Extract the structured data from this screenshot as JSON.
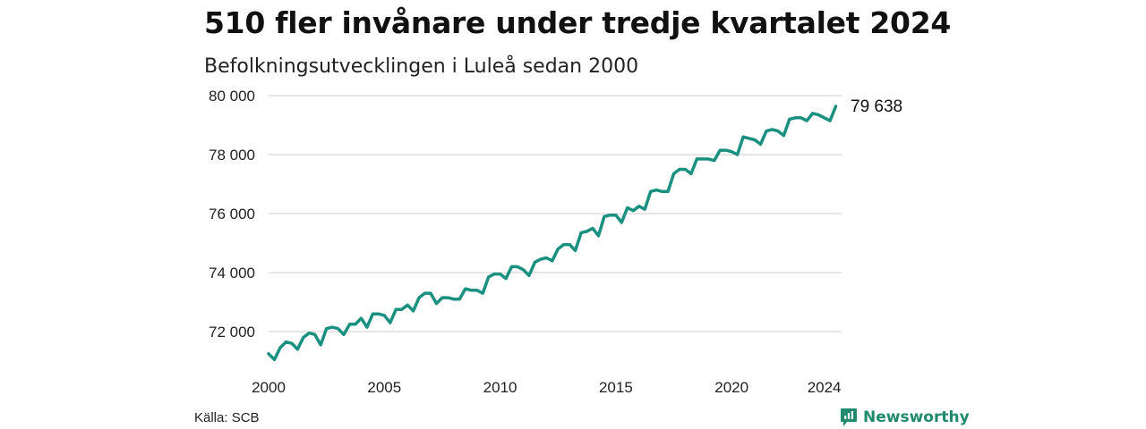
{
  "header": {
    "title": "510 fler invånare under tredje kvartalet 2024",
    "subtitle": "Befolkningsutvecklingen i Luleå sedan 2000"
  },
  "footer": {
    "source": "Källa: SCB",
    "brand": "Newsworthy",
    "brand_icon": "newsworthy-logo-icon"
  },
  "colors": {
    "line": "#1a9080",
    "grid": "#dddddd",
    "brand": "#1f8a6d"
  },
  "chart_data": {
    "type": "line",
    "title": "510 fler invånare under tredje kvartalet 2024",
    "subtitle": "Befolkningsutvecklingen i Luleå sedan 2000",
    "xlabel": "",
    "ylabel": "",
    "grid": "horizontal",
    "ylim": [
      70700,
      80000
    ],
    "xlim": [
      2000,
      2024.75
    ],
    "y_ticks": [
      72000,
      74000,
      76000,
      78000,
      80000
    ],
    "y_tick_labels": [
      "72 000",
      "74 000",
      "76 000",
      "78 000",
      "80 000"
    ],
    "x_ticks": [
      2000,
      2005,
      2010,
      2015,
      2020,
      2024
    ],
    "x_tick_labels": [
      "2000",
      "2005",
      "2010",
      "2015",
      "2020",
      "2024"
    ],
    "end_label": "79 638",
    "series": [
      {
        "x": [
          2000.0,
          2000.25,
          2000.5,
          2000.75,
          2001.0,
          2001.25,
          2001.5,
          2001.75,
          2002.0,
          2002.25,
          2002.5,
          2002.75,
          2003.0,
          2003.25,
          2003.5,
          2003.75,
          2004.0,
          2004.25,
          2004.5,
          2004.75,
          2005.0,
          2005.25,
          2005.5,
          2005.75,
          2006.0,
          2006.25,
          2006.5,
          2006.75,
          2007.0,
          2007.25,
          2007.5,
          2007.75,
          2008.0,
          2008.25,
          2008.5,
          2008.75,
          2009.0,
          2009.25,
          2009.5,
          2009.75,
          2010.0,
          2010.25,
          2010.5,
          2010.75,
          2011.0,
          2011.25,
          2011.5,
          2011.75,
          2012.0,
          2012.25,
          2012.5,
          2012.75,
          2013.0,
          2013.25,
          2013.5,
          2013.75,
          2014.0,
          2014.25,
          2014.5,
          2014.75,
          2015.0,
          2015.25,
          2015.5,
          2015.75,
          2016.0,
          2016.25,
          2016.5,
          2016.75,
          2017.0,
          2017.25,
          2017.5,
          2017.75,
          2018.0,
          2018.25,
          2018.5,
          2018.75,
          2019.0,
          2019.25,
          2019.5,
          2019.75,
          2020.0,
          2020.25,
          2020.5,
          2020.75,
          2021.0,
          2021.25,
          2021.5,
          2021.75,
          2022.0,
          2022.25,
          2022.5,
          2022.75,
          2023.0,
          2023.25,
          2023.5,
          2023.75,
          2024.0,
          2024.25,
          2024.5
        ],
        "values": [
          71250,
          71050,
          71450,
          71650,
          71600,
          71400,
          71800,
          71950,
          71900,
          71550,
          72100,
          72150,
          72100,
          71900,
          72250,
          72250,
          72450,
          72150,
          72600,
          72600,
          72550,
          72300,
          72750,
          72750,
          72900,
          72700,
          73150,
          73300,
          73300,
          72950,
          73150,
          73150,
          73100,
          73100,
          73450,
          73400,
          73400,
          73300,
          73850,
          73950,
          73950,
          73800,
          74200,
          74200,
          74100,
          73900,
          74350,
          74450,
          74500,
          74400,
          74800,
          74950,
          74950,
          74750,
          75350,
          75400,
          75500,
          75250,
          75900,
          75950,
          75950,
          75700,
          76200,
          76100,
          76250,
          76150,
          76750,
          76800,
          76750,
          76750,
          77350,
          77500,
          77500,
          77350,
          77850,
          77850,
          77850,
          77800,
          78150,
          78150,
          78100,
          78000,
          78600,
          78550,
          78500,
          78350,
          78800,
          78850,
          78800,
          78650,
          79200,
          79250,
          79250,
          79150,
          79400,
          79350,
          79250,
          79150,
          79638
        ]
      }
    ]
  }
}
